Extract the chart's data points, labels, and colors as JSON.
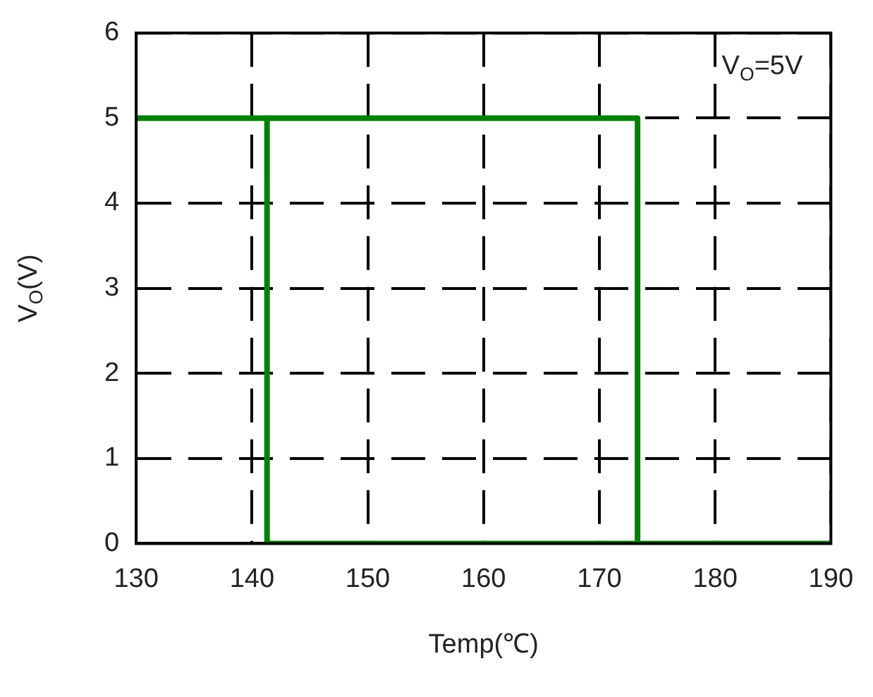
{
  "chart_data": {
    "type": "line",
    "xlabel": "Temp(℃)",
    "ylabel": "V$_{O}$(V)",
    "annotations": [
      "V$_{O}$=5V"
    ],
    "series": [
      {
        "color": "#008000",
        "x": [
          130,
          173.3,
          173.3,
          190
        ],
        "values": [
          5,
          5,
          0,
          0
        ]
      },
      {
        "color": "#008000",
        "x": [
          141.3,
          141.3,
          173.3
        ],
        "values": [
          5,
          0,
          0
        ]
      }
    ],
    "xlim": [
      130,
      190
    ],
    "xticks": [
      130,
      140,
      150,
      160,
      170,
      180,
      190
    ],
    "ylim": [
      0,
      6
    ],
    "yticks": [
      0,
      1,
      2,
      3,
      4,
      5,
      6
    ],
    "grid": true,
    "legend": false,
    "marker": "none",
    "line_style": "solid"
  }
}
